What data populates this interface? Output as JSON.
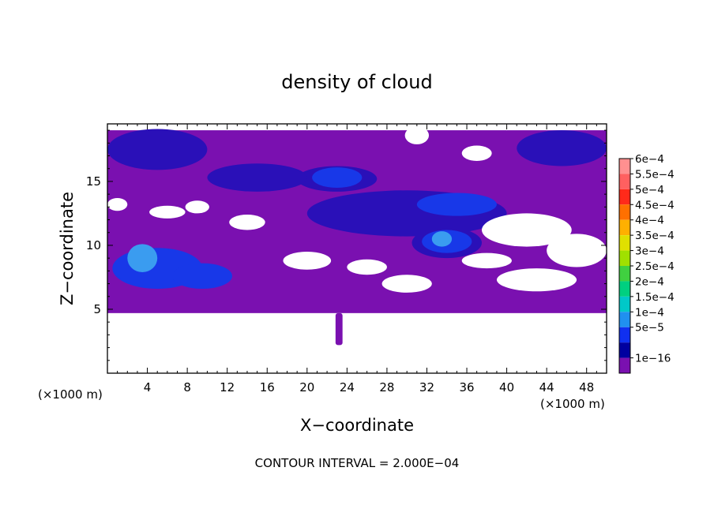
{
  "chart_data": {
    "type": "heatmap",
    "title": "density of cloud",
    "xlabel": "X−coordinate",
    "ylabel": "Z−coordinate",
    "x_unit_left": "(×1000 m)",
    "x_unit_right": "(×1000 m)",
    "xlim": [
      0,
      50
    ],
    "ylim": [
      0,
      19.5
    ],
    "x_ticks": [
      4,
      8,
      12,
      16,
      20,
      24,
      28,
      32,
      36,
      40,
      44,
      48
    ],
    "y_ticks": [
      5,
      10,
      15
    ],
    "footer": "CONTOUR INTERVAL = 2.000E−04",
    "colorbar": {
      "labels": [
        "6e−4",
        "5.5e−4",
        "5e−4",
        "4.5e−4",
        "4e−4",
        "3.5e−4",
        "3e−4",
        "2.5e−4",
        "2e−4",
        "1.5e−4",
        "1e−4",
        "5e−5",
        "1e−16"
      ],
      "colors": [
        "#ff9090",
        "#ff6060",
        "#ff2a1a",
        "#ff7000",
        "#ffb000",
        "#e0e000",
        "#a0e000",
        "#40d040",
        "#00d080",
        "#00c8c8",
        "#2090f0",
        "#1030f0",
        "#0000a0",
        "#7a10b0"
      ]
    },
    "regions": [
      {
        "level": 0,
        "color": "#7a10b0",
        "shape": "base",
        "x": [
          0,
          50
        ],
        "z": [
          4.7,
          19
        ]
      },
      {
        "level": 2,
        "color": "#2a10b8",
        "shape": "ellipse",
        "cx": 5,
        "cz": 17.5,
        "rx": 5,
        "rz": 1.6
      },
      {
        "level": 2,
        "color": "#2a10b8",
        "shape": "ellipse",
        "cx": 45.5,
        "cz": 17.6,
        "rx": 4.5,
        "rz": 1.4
      },
      {
        "level": 2,
        "color": "#2a10b8",
        "shape": "ellipse",
        "cx": 30,
        "cz": 12.5,
        "rx": 10,
        "rz": 1.8
      },
      {
        "level": 2,
        "color": "#2a10b8",
        "shape": "ellipse",
        "cx": 23,
        "cz": 15.2,
        "rx": 4,
        "rz": 1.0
      },
      {
        "level": 2,
        "color": "#2a10b8",
        "shape": "ellipse",
        "cx": 15,
        "cz": 15.3,
        "rx": 5,
        "rz": 1.1
      },
      {
        "level": 2,
        "color": "#2a10b8",
        "shape": "ellipse",
        "cx": 34,
        "cz": 10.2,
        "rx": 3.5,
        "rz": 1.2
      },
      {
        "level": 3,
        "color": "#1838e8",
        "shape": "ellipse",
        "cx": 5,
        "cz": 8.2,
        "rx": 4.5,
        "rz": 1.6
      },
      {
        "level": 3,
        "color": "#1838e8",
        "shape": "ellipse",
        "cx": 9.5,
        "cz": 7.6,
        "rx": 3,
        "rz": 1.0
      },
      {
        "level": 3,
        "color": "#1838e8",
        "shape": "ellipse",
        "cx": 23,
        "cz": 15.3,
        "rx": 2.5,
        "rz": 0.8
      },
      {
        "level": 3,
        "color": "#1838e8",
        "shape": "ellipse",
        "cx": 35,
        "cz": 13.2,
        "rx": 4,
        "rz": 0.9
      },
      {
        "level": 3,
        "color": "#1838e8",
        "shape": "ellipse",
        "cx": 34,
        "cz": 10.3,
        "rx": 2.5,
        "rz": 0.9
      },
      {
        "level": 4,
        "color": "#3a9cf0",
        "shape": "ellipse",
        "cx": 3.5,
        "cz": 9.0,
        "rx": 1.5,
        "rz": 1.1
      },
      {
        "level": 4,
        "color": "#3a9cf0",
        "shape": "ellipse",
        "cx": 33.5,
        "cz": 10.5,
        "rx": 1.0,
        "rz": 0.6
      }
    ],
    "gaps": [
      {
        "cx": 6,
        "cz": 12.6,
        "rx": 1.8,
        "rz": 0.5
      },
      {
        "cx": 14,
        "cz": 11.8,
        "rx": 1.8,
        "rz": 0.6
      },
      {
        "cx": 42,
        "cz": 11.2,
        "rx": 4.5,
        "rz": 1.3
      },
      {
        "cx": 47,
        "cz": 9.6,
        "rx": 3,
        "rz": 1.3
      },
      {
        "cx": 20,
        "cz": 8.8,
        "rx": 2.4,
        "rz": 0.7
      },
      {
        "cx": 26,
        "cz": 8.3,
        "rx": 2,
        "rz": 0.6
      },
      {
        "cx": 30,
        "cz": 7.0,
        "rx": 2.5,
        "rz": 0.7
      },
      {
        "cx": 38,
        "cz": 8.8,
        "rx": 2.5,
        "rz": 0.6
      },
      {
        "cx": 43,
        "cz": 7.3,
        "rx": 4,
        "rz": 0.9
      },
      {
        "cx": 31,
        "cz": 18.6,
        "rx": 1.2,
        "rz": 0.7
      },
      {
        "cx": 37,
        "cz": 17.2,
        "rx": 1.5,
        "rz": 0.6
      },
      {
        "cx": 1,
        "cz": 13.2,
        "rx": 1,
        "rz": 0.5
      },
      {
        "cx": 9,
        "cz": 13.0,
        "rx": 1.2,
        "rz": 0.5
      }
    ],
    "plume": {
      "x": 23.2,
      "z_top": 4.7,
      "z_bottom": 2.2,
      "halfwidth": 0.35
    }
  }
}
